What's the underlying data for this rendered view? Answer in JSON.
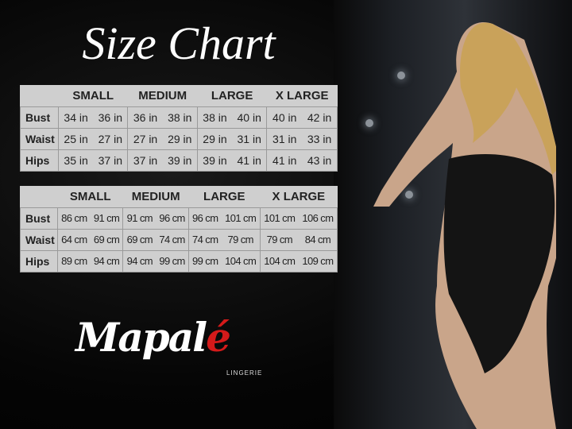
{
  "title": "Size Chart",
  "chart_data": [
    {
      "type": "table",
      "unit": "in",
      "columns": [
        "SMALL",
        "MEDIUM",
        "LARGE",
        "X LARGE"
      ],
      "rows": [
        {
          "label": "Bust",
          "values": [
            "34 in",
            "36 in",
            "36 in",
            "38 in",
            "38 in",
            "40 in",
            "40 in",
            "42 in"
          ]
        },
        {
          "label": "Waist",
          "values": [
            "25 in",
            "27 in",
            "27 in",
            "29 in",
            "29 in",
            "31 in",
            "31 in",
            "33 in"
          ]
        },
        {
          "label": "Hips",
          "values": [
            "35 in",
            "37 in",
            "37 in",
            "39 in",
            "39 in",
            "41 in",
            "41 in",
            "43 in"
          ]
        }
      ]
    },
    {
      "type": "table",
      "unit": "cm",
      "columns": [
        "SMALL",
        "MEDIUM",
        "LARGE",
        "X LARGE"
      ],
      "rows": [
        {
          "label": "Bust",
          "values": [
            "86 cm",
            "91 cm",
            "91 cm",
            "96 cm",
            "96 cm",
            "101 cm",
            "101 cm",
            "106 cm"
          ]
        },
        {
          "label": "Waist",
          "values": [
            "64 cm",
            "69 cm",
            "69 cm",
            "74 cm",
            "74 cm",
            "79 cm",
            "79 cm",
            "84 cm"
          ]
        },
        {
          "label": "Hips",
          "values": [
            "89 cm",
            "94 cm",
            "94 cm",
            "99 cm",
            "99 cm",
            "104 cm",
            "104 cm",
            "109 cm"
          ]
        }
      ]
    }
  ],
  "logo": {
    "brand_main": "Mapal",
    "brand_accent": "é",
    "sub": "LINGERIE",
    "accent_color": "#d41a1a"
  }
}
